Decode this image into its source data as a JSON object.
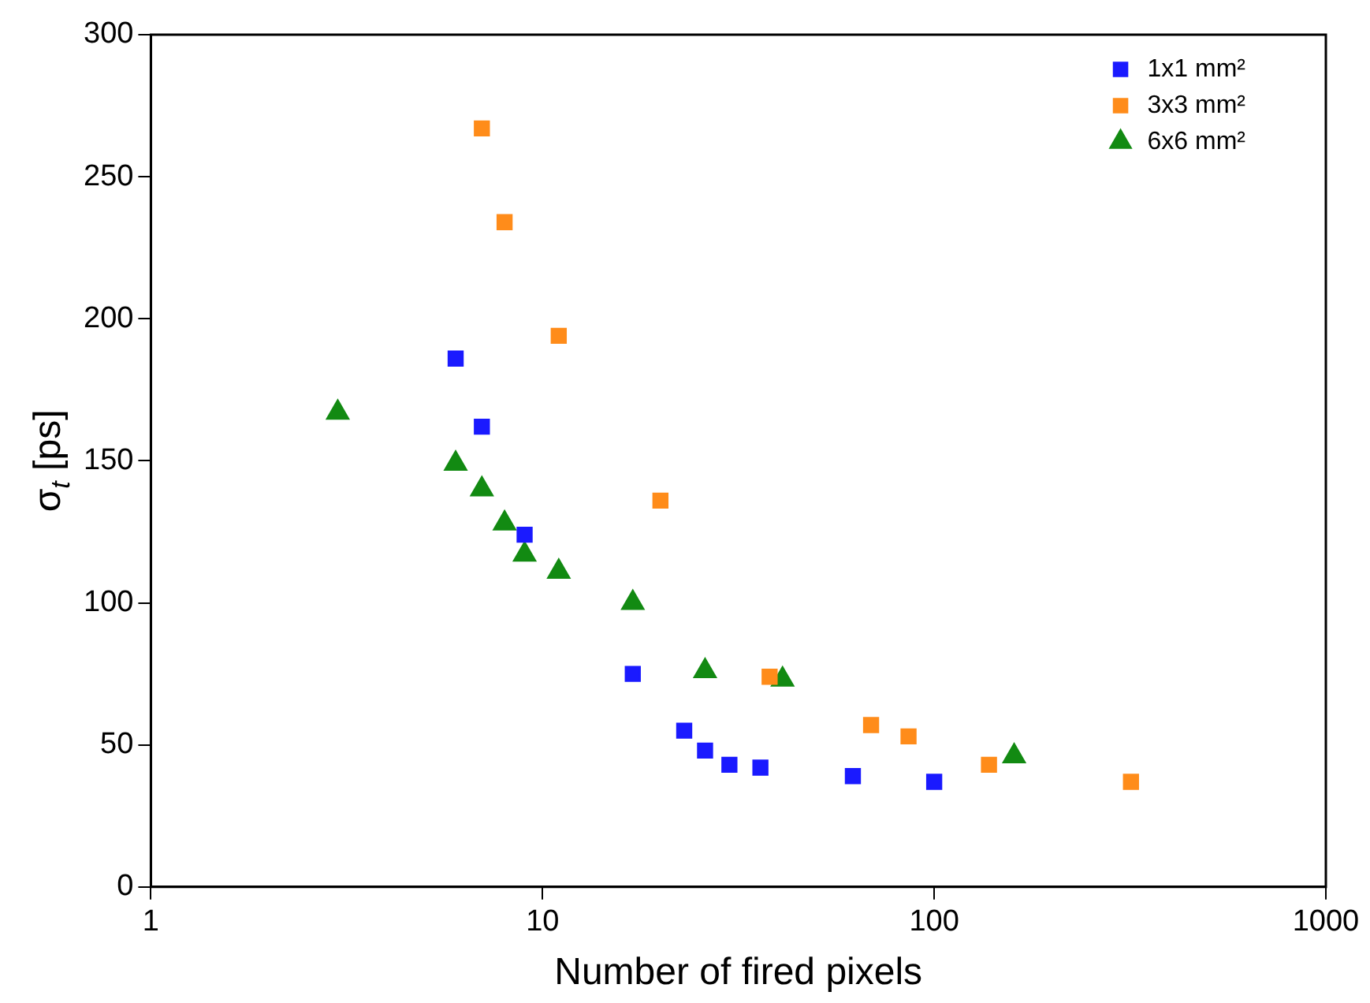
{
  "chart_data": {
    "type": "scatter",
    "xlabel": "Number of fired pixels",
    "ylabel": "σ$_{t}$ [ps]",
    "log": "x",
    "xlim": [
      1,
      1000
    ],
    "xticks": [
      1,
      10,
      100,
      1000
    ],
    "ylim": [
      0,
      300
    ],
    "yticks": [
      0,
      50,
      100,
      150,
      200,
      250,
      300
    ],
    "grid": false,
    "legend": "top right",
    "series": [
      {
        "name": "1x1 mm²",
        "color": "#1a1aff",
        "marker": "square",
        "x": [
          6,
          7,
          9,
          17,
          23,
          26,
          30,
          36,
          62,
          100
        ],
        "values": [
          186,
          162,
          124,
          75,
          55,
          48,
          43,
          42,
          39,
          37
        ]
      },
      {
        "name": "3x3 mm²",
        "color": "#ff8c1a",
        "marker": "square",
        "x": [
          7,
          8,
          11,
          20,
          38,
          69,
          86,
          138,
          318
        ],
        "values": [
          267,
          234,
          194,
          136,
          74,
          57,
          53,
          43,
          37
        ]
      },
      {
        "name": "6x6 mm²",
        "color": "#128a12",
        "marker": "triangle",
        "x": [
          3,
          6,
          7,
          8,
          9,
          11,
          17,
          26,
          41,
          160
        ],
        "values": [
          167,
          149,
          140,
          128,
          117,
          111,
          100,
          76,
          73,
          46
        ]
      }
    ]
  }
}
